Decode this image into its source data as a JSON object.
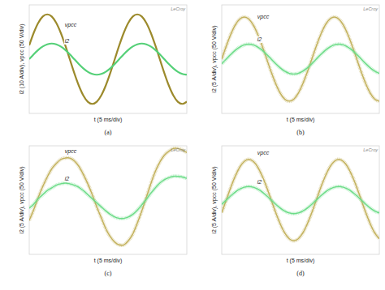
{
  "chart_data": [
    {
      "type": "line",
      "caption": "(a)",
      "brand": "LeCroy",
      "x_label": "t (5 ms/div)",
      "y_label": "i2 (10 A/div), vpcc (50 V/div)",
      "xlim": [
        0,
        35
      ],
      "ylim": [
        -4,
        4
      ],
      "grid": false,
      "tick_labels": false,
      "x": [
        0,
        1,
        2,
        3,
        4,
        5,
        6,
        7,
        8,
        9,
        10,
        11,
        12,
        13,
        14,
        15,
        16,
        17,
        18,
        19,
        20,
        21,
        22,
        23,
        24,
        25,
        26,
        27,
        28,
        29,
        30,
        31,
        32,
        33,
        34,
        35
      ],
      "series": [
        {
          "name": "vpcc",
          "color": "#9c8a2c",
          "line_style": "solid",
          "values": [
            1.02,
            1.94,
            2.67,
            3.14,
            3.3,
            3.14,
            2.67,
            1.94,
            1.02,
            0,
            -1.02,
            -1.94,
            -2.67,
            -3.14,
            -3.3,
            -3.14,
            -2.67,
            -1.94,
            -1.02,
            0,
            1.02,
            1.94,
            2.67,
            3.14,
            3.3,
            3.14,
            2.67,
            1.94,
            1.02,
            0,
            -1.02,
            -1.94,
            -2.67,
            -3.14,
            -3.3,
            -3.14
          ]
        },
        {
          "name": "i2",
          "color": "#55d078",
          "line_style": "solid",
          "values": [
            0,
            0.36,
            0.68,
            0.93,
            1.09,
            1.15,
            1.09,
            0.93,
            0.68,
            0.36,
            0,
            -0.36,
            -0.68,
            -0.93,
            -1.09,
            -1.15,
            -1.09,
            -0.93,
            -0.68,
            -0.36,
            0,
            0.36,
            0.68,
            0.93,
            1.09,
            1.15,
            1.09,
            0.93,
            0.68,
            0.36,
            0,
            -0.36,
            -0.68,
            -0.93,
            -1.09,
            -1.15
          ]
        }
      ]
    },
    {
      "type": "line",
      "caption": "(b)",
      "brand": "LeCroy",
      "x_label": "t (5 ms/div)",
      "y_label": "i2 (5 A/div), vpcc (50 V/div)",
      "xlim": [
        0,
        35
      ],
      "ylim": [
        -4,
        4
      ],
      "grid": false,
      "tick_labels": false,
      "x": [
        0,
        1,
        2,
        3,
        4,
        5,
        6,
        7,
        8,
        9,
        10,
        11,
        12,
        13,
        14,
        15,
        16,
        17,
        18,
        19,
        20,
        21,
        22,
        23,
        24,
        25,
        26,
        27,
        28,
        29,
        30,
        31,
        32,
        33,
        34,
        35
      ],
      "series": [
        {
          "name": "vpcc",
          "color": "#c2b05a",
          "line_style": "noisy",
          "values": [
            0,
            0.96,
            1.82,
            2.51,
            2.95,
            3.1,
            2.95,
            2.51,
            1.82,
            0.96,
            0,
            -0.96,
            -1.82,
            -2.51,
            -2.95,
            -3.1,
            -2.95,
            -2.51,
            -1.82,
            -0.96,
            0,
            0.96,
            1.82,
            2.51,
            2.95,
            3.1,
            2.95,
            2.51,
            1.82,
            0.96,
            0,
            -0.96,
            -1.82,
            -2.51,
            -2.95,
            -3.1
          ]
        },
        {
          "name": "i2",
          "color": "#6cdc88",
          "line_style": "noisy",
          "values": [
            -0.34,
            0,
            0.34,
            0.65,
            0.89,
            1.05,
            1.1,
            1.05,
            0.89,
            0.65,
            0.34,
            0,
            -0.34,
            -0.65,
            -0.89,
            -1.05,
            -1.1,
            -1.05,
            -0.89,
            -0.65,
            -0.34,
            0,
            0.34,
            0.65,
            0.89,
            1.05,
            1.1,
            1.05,
            0.89,
            0.65,
            0.34,
            0,
            -0.34,
            -0.65,
            -0.89,
            -1.05
          ]
        }
      ]
    },
    {
      "type": "line",
      "caption": "(c)",
      "brand": "LeCroy",
      "x_label": "t (5 ms/div)",
      "y_label": "i2 (5 A/div), vpcc (50 V/div)",
      "xlim": [
        0,
        35
      ],
      "ylim": [
        -4,
        4
      ],
      "grid": false,
      "tick_labels": false,
      "x": [
        0,
        1,
        2,
        3,
        4,
        5,
        6,
        7,
        8,
        9,
        10,
        11,
        12,
        13,
        14,
        15,
        16,
        17,
        18,
        19,
        20,
        21,
        22,
        23,
        24,
        25,
        26,
        27,
        28,
        29,
        30,
        31,
        32,
        33,
        34,
        35
      ],
      "series": [
        {
          "name": "vpcc",
          "color": "#c2b05a",
          "line_style": "noisy",
          "values": [
            -1.5,
            -0.7,
            0.2,
            1.0,
            1.7,
            2.3,
            2.7,
            3.0,
            3.1,
            3.1,
            2.9,
            2.5,
            1.9,
            1.2,
            0.4,
            -0.5,
            -1.3,
            -2.1,
            -2.7,
            -3.1,
            -3.3,
            -3.3,
            -3.0,
            -2.5,
            -1.7,
            -0.8,
            0.2,
            1.2,
            2.1,
            2.8,
            3.3,
            3.6,
            3.8,
            3.8,
            3.7,
            3.5
          ]
        },
        {
          "name": "i2",
          "color": "#6cdc88",
          "line_style": "noisy",
          "values": [
            -0.6,
            -0.3,
            0.1,
            0.4,
            0.7,
            0.9,
            1.1,
            1.2,
            1.25,
            1.2,
            1.1,
            0.95,
            0.7,
            0.4,
            0.1,
            -0.2,
            -0.5,
            -0.8,
            -1.05,
            -1.25,
            -1.35,
            -1.35,
            -1.25,
            -1.05,
            -0.75,
            -0.35,
            0.05,
            0.5,
            0.9,
            1.25,
            1.5,
            1.65,
            1.75,
            1.75,
            1.7,
            1.6
          ]
        }
      ]
    },
    {
      "type": "line",
      "caption": "(d)",
      "brand": "LeCroy",
      "x_label": "t (5 ms/div)",
      "y_label": "i2 (5 A/div), vpcc (50 V/div)",
      "xlim": [
        0,
        35
      ],
      "ylim": [
        -4,
        4
      ],
      "grid": false,
      "tick_labels": false,
      "x": [
        0,
        1,
        2,
        3,
        4,
        5,
        6,
        7,
        8,
        9,
        10,
        11,
        12,
        13,
        14,
        15,
        16,
        17,
        18,
        19,
        20,
        21,
        22,
        23,
        24,
        25,
        26,
        27,
        28,
        29,
        30,
        31,
        32,
        33,
        34,
        35
      ],
      "series": [
        {
          "name": "vpcc",
          "color": "#c2b05a",
          "line_style": "noisy",
          "values": [
            -0.93,
            0,
            0.93,
            1.76,
            2.43,
            2.85,
            3.0,
            2.85,
            2.43,
            1.76,
            0.93,
            0,
            -0.93,
            -1.76,
            -2.43,
            -2.85,
            -3.0,
            -2.85,
            -2.43,
            -1.76,
            -0.93,
            0,
            0.93,
            1.76,
            2.43,
            2.85,
            3.0,
            2.85,
            2.43,
            1.76,
            0.93,
            0,
            -0.93,
            -1.76,
            -2.43,
            -2.85
          ]
        },
        {
          "name": "i2",
          "color": "#6cdc88",
          "line_style": "noisy",
          "values": [
            -0.31,
            0,
            0.31,
            0.59,
            0.81,
            0.95,
            1.0,
            0.95,
            0.81,
            0.59,
            0.31,
            0,
            -0.31,
            -0.59,
            -0.81,
            -0.95,
            -1.0,
            -0.95,
            -0.81,
            -0.59,
            -0.31,
            0,
            0.31,
            0.59,
            0.81,
            0.95,
            1.0,
            0.95,
            0.81,
            0.59,
            0.31,
            0,
            -0.31,
            -0.59,
            -0.81,
            -0.95
          ]
        }
      ]
    }
  ]
}
